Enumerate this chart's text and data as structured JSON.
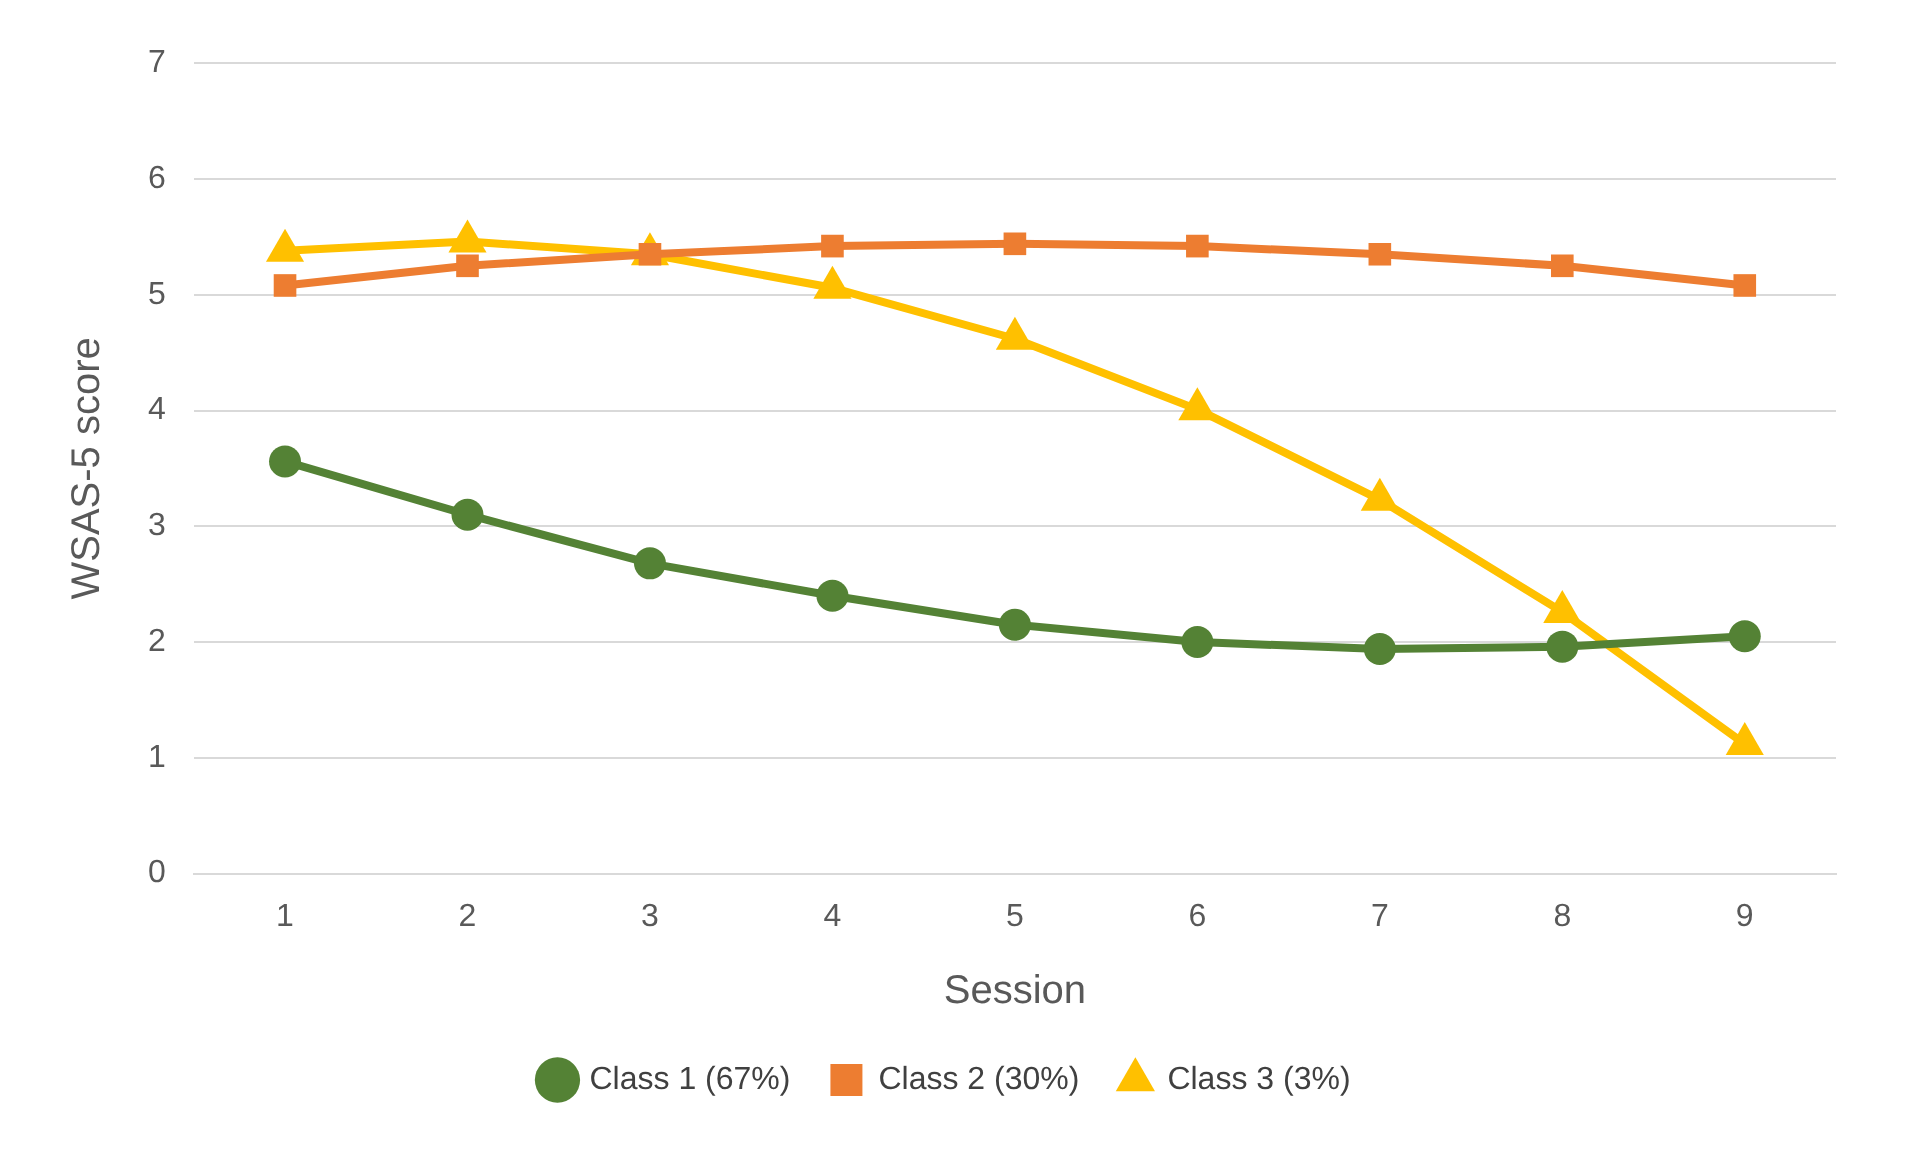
{
  "chart_data": {
    "type": "line",
    "xlabel": "Session",
    "ylabel": "WSAS-5 score",
    "categories": [
      "1",
      "2",
      "3",
      "4",
      "5",
      "6",
      "7",
      "8",
      "9"
    ],
    "series": [
      {
        "name": "Class 1 (67%)",
        "color": "#548235",
        "marker": "circle",
        "values": [
          3.56,
          3.1,
          2.68,
          2.4,
          2.15,
          2.0,
          1.94,
          1.96,
          2.05
        ]
      },
      {
        "name": "Class 2 (30%)",
        "color": "#ed7d31",
        "marker": "square",
        "values": [
          5.08,
          5.25,
          5.35,
          5.42,
          5.44,
          5.42,
          5.35,
          5.25,
          5.08
        ]
      },
      {
        "name": "Class 3 (3%)",
        "color": "#ffc000",
        "marker": "triangle",
        "values": [
          5.38,
          5.46,
          5.35,
          5.06,
          4.62,
          4.01,
          3.23,
          2.26,
          1.12
        ]
      }
    ],
    "ylim": [
      0,
      7
    ],
    "yticks": [
      0,
      1,
      2,
      3,
      4,
      5,
      6,
      7
    ],
    "grid": "y",
    "legend": "bottom"
  }
}
